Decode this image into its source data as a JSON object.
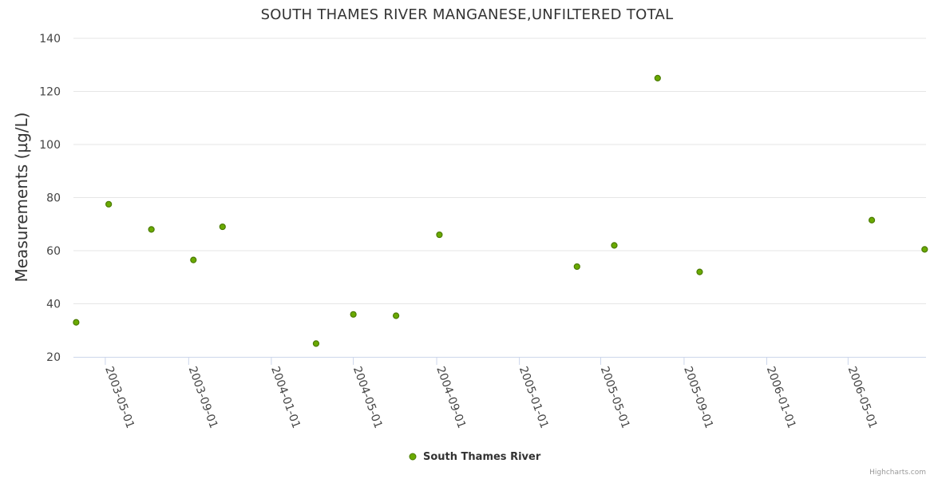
{
  "chart_data": {
    "type": "scatter",
    "title": "SOUTH THAMES RIVER MANGANESE,UNFILTERED TOTAL",
    "ylabel": "Measurements (µg/L)",
    "xlabel": "",
    "ylim": [
      20,
      140
    ],
    "yticks": [
      20,
      40,
      60,
      80,
      100,
      120,
      140
    ],
    "xlim": [
      "2003-03-15",
      "2006-08-24"
    ],
    "xticks": [
      "2003-05-01",
      "2003-09-01",
      "2004-01-01",
      "2004-05-01",
      "2004-09-01",
      "2005-01-01",
      "2005-05-01",
      "2005-09-01",
      "2006-01-01",
      "2006-05-01"
    ],
    "grid": true,
    "legend": "bottom-center",
    "series": [
      {
        "name": "South Thames River",
        "color": "#6aaa00",
        "points": [
          {
            "x": "2003-03-19",
            "y": 33
          },
          {
            "x": "2003-05-06",
            "y": 77.5
          },
          {
            "x": "2003-07-08",
            "y": 68
          },
          {
            "x": "2003-09-08",
            "y": 56.5
          },
          {
            "x": "2003-10-21",
            "y": 69
          },
          {
            "x": "2004-03-07",
            "y": 25
          },
          {
            "x": "2004-05-01",
            "y": 36
          },
          {
            "x": "2004-07-03",
            "y": 35.5
          },
          {
            "x": "2004-09-05",
            "y": 66
          },
          {
            "x": "2005-03-27",
            "y": 54
          },
          {
            "x": "2005-05-21",
            "y": 62
          },
          {
            "x": "2005-07-24",
            "y": 125
          },
          {
            "x": "2005-09-24",
            "y": 52
          },
          {
            "x": "2006-06-05",
            "y": 71.5
          },
          {
            "x": "2006-08-22",
            "y": 60.5
          }
        ]
      }
    ]
  },
  "credits": "Highcharts.com"
}
